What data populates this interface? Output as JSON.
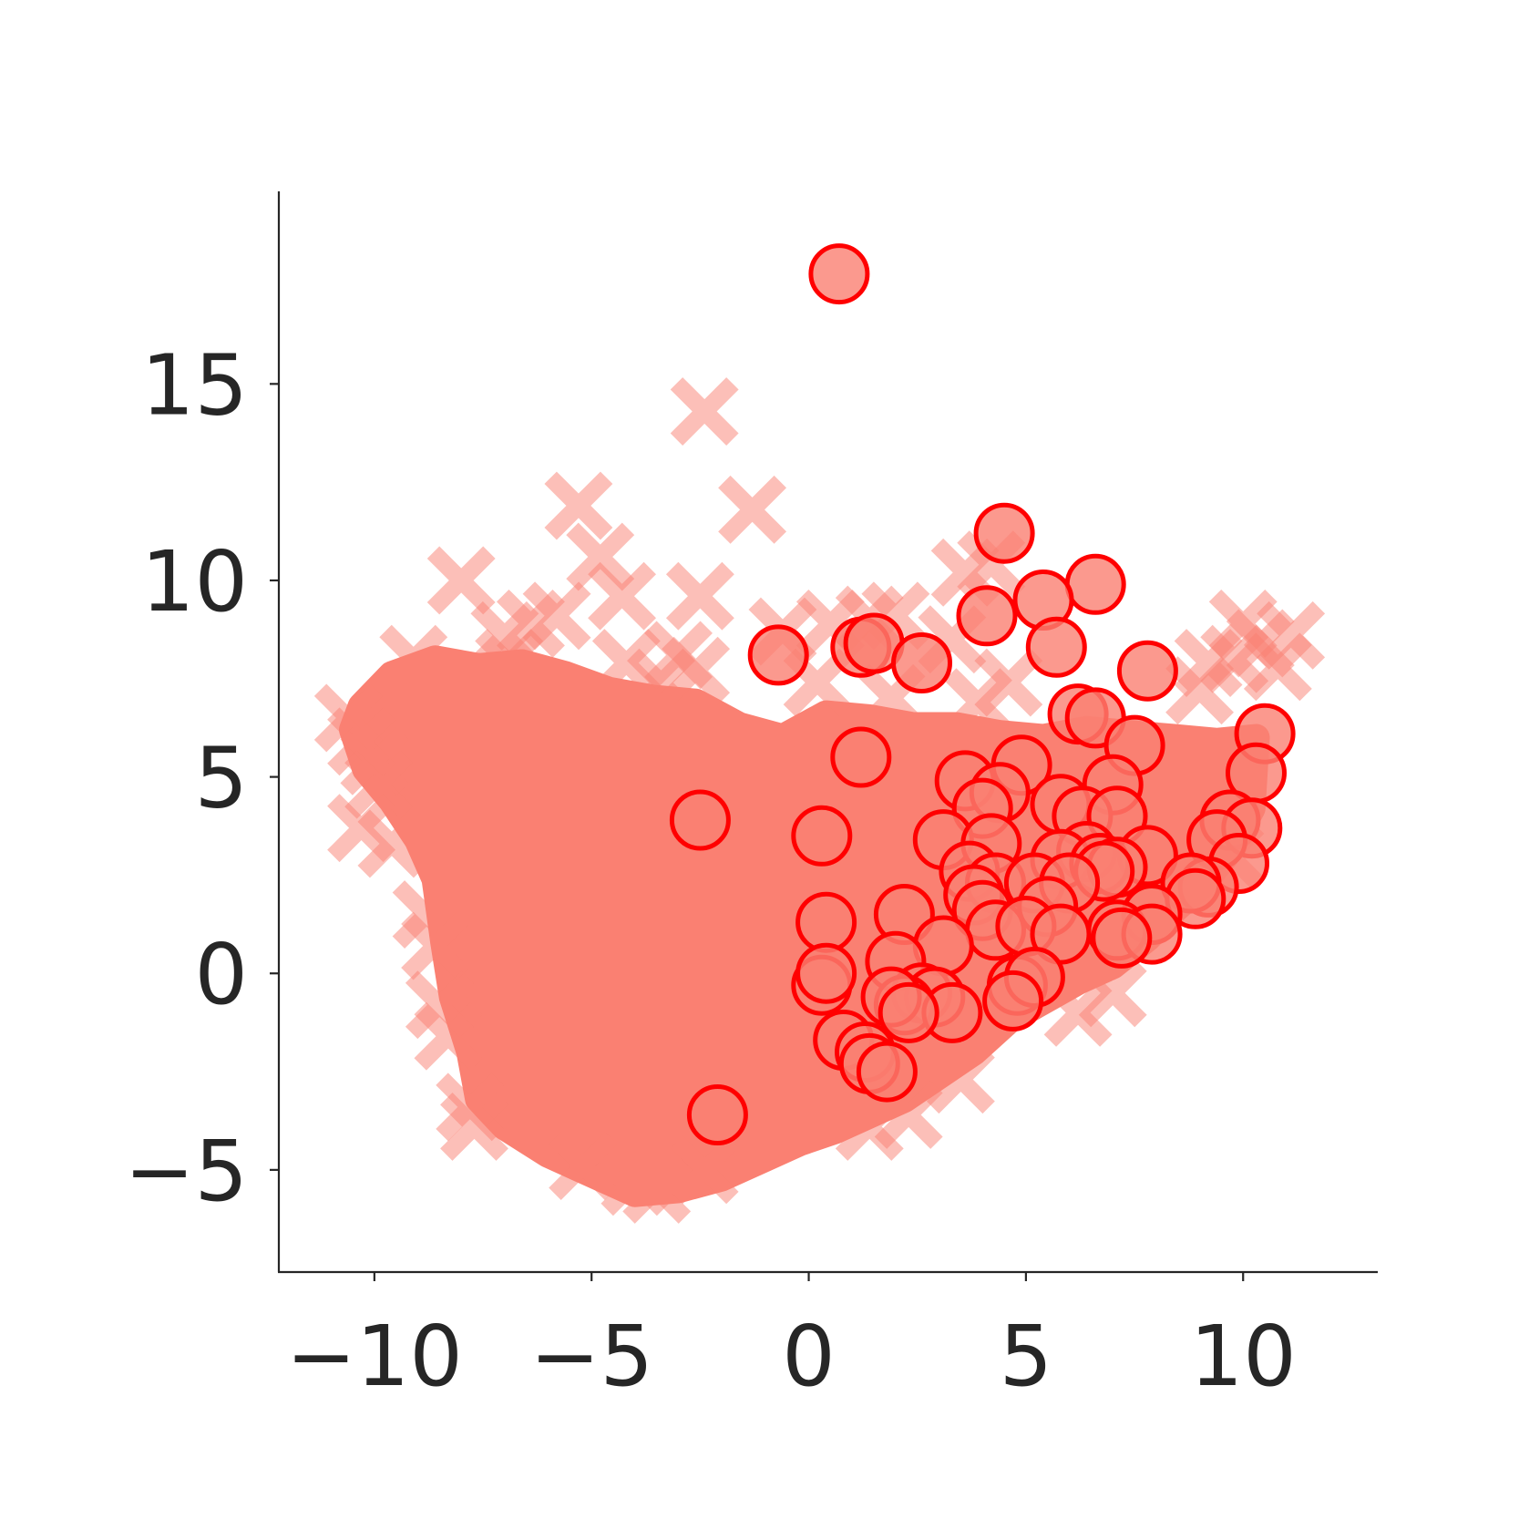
{
  "chart_data": {
    "type": "scatter",
    "title": "",
    "xlabel": "",
    "ylabel": "",
    "xlim": [
      -12.2,
      13.1
    ],
    "ylim": [
      -7.6,
      19.9
    ],
    "x_ticks": [
      -10,
      -5,
      0,
      5,
      10
    ],
    "y_ticks": [
      -5,
      0,
      5,
      10,
      15
    ],
    "x_tick_labels": [
      "−10",
      "−5",
      "0",
      "5",
      "10"
    ],
    "y_tick_labels": [
      "−5",
      "0",
      "5",
      "10",
      "15"
    ],
    "grid": false,
    "legend": "none",
    "colors": {
      "cross": "#fa8072",
      "circle_fill": "#fa8072",
      "circle_edge": "#ff0000",
      "axis": "#262626"
    },
    "cloud_outline": [
      [
        -10.3,
        6.8
      ],
      [
        -9.6,
        7.6
      ],
      [
        -8.6,
        8.0
      ],
      [
        -7.6,
        7.8
      ],
      [
        -6.6,
        7.9
      ],
      [
        -5.6,
        7.6
      ],
      [
        -4.6,
        7.2
      ],
      [
        -3.6,
        7.0
      ],
      [
        -2.6,
        6.9
      ],
      [
        -1.6,
        6.3
      ],
      [
        -0.6,
        6.0
      ],
      [
        0.4,
        6.6
      ],
      [
        1.4,
        6.5
      ],
      [
        2.4,
        6.3
      ],
      [
        3.4,
        6.3
      ],
      [
        4.4,
        6.1
      ],
      [
        5.4,
        6.0
      ],
      [
        6.4,
        6.2
      ],
      [
        7.4,
        6.1
      ],
      [
        8.4,
        6.0
      ],
      [
        9.4,
        5.9
      ],
      [
        10.3,
        6.0
      ],
      [
        10.2,
        4.2
      ],
      [
        9.6,
        3.0
      ],
      [
        9.0,
        2.2
      ],
      [
        8.4,
        1.6
      ],
      [
        7.8,
        0.9
      ],
      [
        7.0,
        0.2
      ],
      [
        6.2,
        -0.2
      ],
      [
        5.4,
        -0.7
      ],
      [
        4.6,
        -1.2
      ],
      [
        3.8,
        -2.0
      ],
      [
        3.0,
        -2.6
      ],
      [
        2.2,
        -3.2
      ],
      [
        1.4,
        -3.6
      ],
      [
        0.6,
        -4.0
      ],
      [
        -0.2,
        -4.3
      ],
      [
        -1.0,
        -4.7
      ],
      [
        -2.0,
        -5.2
      ],
      [
        -3.0,
        -5.5
      ],
      [
        -4.0,
        -5.6
      ],
      [
        -5.0,
        -5.1
      ],
      [
        -6.0,
        -4.6
      ],
      [
        -7.0,
        -3.9
      ],
      [
        -7.6,
        -3.2
      ],
      [
        -7.8,
        -2.0
      ],
      [
        -8.2,
        -0.6
      ],
      [
        -8.4,
        0.8
      ],
      [
        -8.6,
        2.4
      ],
      [
        -9.0,
        3.4
      ],
      [
        -9.6,
        4.4
      ],
      [
        -10.2,
        5.2
      ],
      [
        -10.5,
        6.2
      ]
    ],
    "cross_points": [
      {
        "x": -2.4,
        "y": 14.3
      },
      {
        "x": -5.3,
        "y": 11.9
      },
      {
        "x": -1.3,
        "y": 11.8
      },
      {
        "x": -4.8,
        "y": 10.6
      },
      {
        "x": -8.0,
        "y": 10.0
      },
      {
        "x": -4.3,
        "y": 9.6
      },
      {
        "x": -2.5,
        "y": 9.6
      },
      {
        "x": -5.8,
        "y": 9.1
      },
      {
        "x": -6.4,
        "y": 8.9
      },
      {
        "x": -7.0,
        "y": 8.6
      },
      {
        "x": -9.1,
        "y": 8.0
      },
      {
        "x": -6.9,
        "y": 7.9
      },
      {
        "x": -4.2,
        "y": 7.9
      },
      {
        "x": -3.0,
        "y": 8.1
      },
      {
        "x": -2.6,
        "y": 7.7
      },
      {
        "x": -3.4,
        "y": 7.4
      },
      {
        "x": -0.6,
        "y": 8.7
      },
      {
        "x": 0.5,
        "y": 8.9
      },
      {
        "x": 1.4,
        "y": 9.0
      },
      {
        "x": 2.0,
        "y": 9.1
      },
      {
        "x": 3.3,
        "y": 8.5
      },
      {
        "x": 3.6,
        "y": 10.2
      },
      {
        "x": 4.2,
        "y": 10.4
      },
      {
        "x": 4.6,
        "y": 7.4
      },
      {
        "x": 3.9,
        "y": 6.9
      },
      {
        "x": 1.9,
        "y": 7.0
      },
      {
        "x": 0.2,
        "y": 7.4
      },
      {
        "x": 10.0,
        "y": 8.9
      },
      {
        "x": 10.4,
        "y": 8.4
      },
      {
        "x": 9.8,
        "y": 8.0
      },
      {
        "x": 9.2,
        "y": 7.9
      },
      {
        "x": 10.8,
        "y": 7.8
      },
      {
        "x": 11.1,
        "y": 8.6
      },
      {
        "x": 9.0,
        "y": 7.2
      },
      {
        "x": -10.6,
        "y": 6.5
      },
      {
        "x": -10.3,
        "y": 5.9
      },
      {
        "x": -10.0,
        "y": 5.4
      },
      {
        "x": -9.9,
        "y": 4.8
      },
      {
        "x": -10.3,
        "y": 3.7
      },
      {
        "x": -9.6,
        "y": 3.3
      },
      {
        "x": -8.8,
        "y": 1.5
      },
      {
        "x": -8.6,
        "y": 0.7
      },
      {
        "x": -8.5,
        "y": -0.8
      },
      {
        "x": -8.3,
        "y": -1.6
      },
      {
        "x": -7.8,
        "y": -3.4
      },
      {
        "x": -7.7,
        "y": -3.9
      },
      {
        "x": -5.2,
        "y": -4.9
      },
      {
        "x": -4.0,
        "y": -5.3
      },
      {
        "x": -3.5,
        "y": -5.5
      },
      {
        "x": -2.4,
        "y": -5.0
      },
      {
        "x": 1.4,
        "y": -3.9
      },
      {
        "x": 2.3,
        "y": -3.6
      },
      {
        "x": 3.5,
        "y": -2.7
      },
      {
        "x": 6.2,
        "y": -1.0
      },
      {
        "x": 7.0,
        "y": -0.5
      },
      {
        "x": 9.7,
        "y": 3.0
      }
    ],
    "circle_points": [
      {
        "x": 0.7,
        "y": 17.8
      },
      {
        "x": 4.5,
        "y": 11.2
      },
      {
        "x": 6.6,
        "y": 9.9
      },
      {
        "x": 5.4,
        "y": 9.5
      },
      {
        "x": 4.1,
        "y": 9.1
      },
      {
        "x": 5.7,
        "y": 8.3
      },
      {
        "x": 1.2,
        "y": 8.3
      },
      {
        "x": 1.5,
        "y": 8.4
      },
      {
        "x": -0.7,
        "y": 8.1
      },
      {
        "x": 2.6,
        "y": 7.9
      },
      {
        "x": 7.8,
        "y": 7.7
      },
      {
        "x": 6.2,
        "y": 6.6
      },
      {
        "x": 6.6,
        "y": 6.5
      },
      {
        "x": 10.5,
        "y": 6.1
      },
      {
        "x": 7.5,
        "y": 5.8
      },
      {
        "x": 1.2,
        "y": 5.5
      },
      {
        "x": 4.9,
        "y": 5.3
      },
      {
        "x": 10.3,
        "y": 5.1
      },
      {
        "x": 3.6,
        "y": 4.9
      },
      {
        "x": 4.4,
        "y": 4.6
      },
      {
        "x": 7.0,
        "y": 4.8
      },
      {
        "x": 5.8,
        "y": 4.3
      },
      {
        "x": 4.0,
        "y": 4.2
      },
      {
        "x": 6.3,
        "y": 4.0
      },
      {
        "x": 7.1,
        "y": 4.0
      },
      {
        "x": -2.5,
        "y": 3.9
      },
      {
        "x": 9.7,
        "y": 3.9
      },
      {
        "x": 10.2,
        "y": 3.7
      },
      {
        "x": 0.3,
        "y": 3.5
      },
      {
        "x": 3.1,
        "y": 3.4
      },
      {
        "x": 4.2,
        "y": 3.3
      },
      {
        "x": 9.4,
        "y": 3.4
      },
      {
        "x": 6.4,
        "y": 3.1
      },
      {
        "x": 7.8,
        "y": 3.0
      },
      {
        "x": 5.8,
        "y": 2.9
      },
      {
        "x": 6.7,
        "y": 2.8
      },
      {
        "x": 7.1,
        "y": 2.7
      },
      {
        "x": 3.7,
        "y": 2.6
      },
      {
        "x": 9.9,
        "y": 2.8
      },
      {
        "x": 6.8,
        "y": 2.6
      },
      {
        "x": 4.3,
        "y": 2.3
      },
      {
        "x": 5.2,
        "y": 2.3
      },
      {
        "x": 6.0,
        "y": 2.3
      },
      {
        "x": 9.2,
        "y": 2.2
      },
      {
        "x": 8.8,
        "y": 2.3
      },
      {
        "x": 3.8,
        "y": 2.0
      },
      {
        "x": 8.9,
        "y": 1.9
      },
      {
        "x": 5.5,
        "y": 1.7
      },
      {
        "x": 4.0,
        "y": 1.6
      },
      {
        "x": 2.2,
        "y": 1.5
      },
      {
        "x": 7.9,
        "y": 1.5
      },
      {
        "x": 0.4,
        "y": 1.3
      },
      {
        "x": 4.3,
        "y": 1.1
      },
      {
        "x": 5.0,
        "y": 1.2
      },
      {
        "x": 5.8,
        "y": 1.0
      },
      {
        "x": 7.1,
        "y": 1.1
      },
      {
        "x": 7.9,
        "y": 1.0
      },
      {
        "x": 7.2,
        "y": 0.9
      },
      {
        "x": 3.1,
        "y": 0.7
      },
      {
        "x": 2.0,
        "y": 0.3
      },
      {
        "x": 0.3,
        "y": -0.3
      },
      {
        "x": 4.8,
        "y": -0.3
      },
      {
        "x": 5.2,
        "y": -0.1
      },
      {
        "x": 0.4,
        "y": 0.0
      },
      {
        "x": 2.6,
        "y": -0.5
      },
      {
        "x": 2.9,
        "y": -0.6
      },
      {
        "x": 2.2,
        "y": -0.8
      },
      {
        "x": 1.9,
        "y": -0.6
      },
      {
        "x": 3.3,
        "y": -1.0
      },
      {
        "x": 2.3,
        "y": -1.0
      },
      {
        "x": 4.7,
        "y": -0.7
      },
      {
        "x": 0.8,
        "y": -1.7
      },
      {
        "x": 1.3,
        "y": -2.0
      },
      {
        "x": 1.4,
        "y": -2.3
      },
      {
        "x": 1.8,
        "y": -2.5
      },
      {
        "x": -2.1,
        "y": -3.6
      }
    ]
  }
}
